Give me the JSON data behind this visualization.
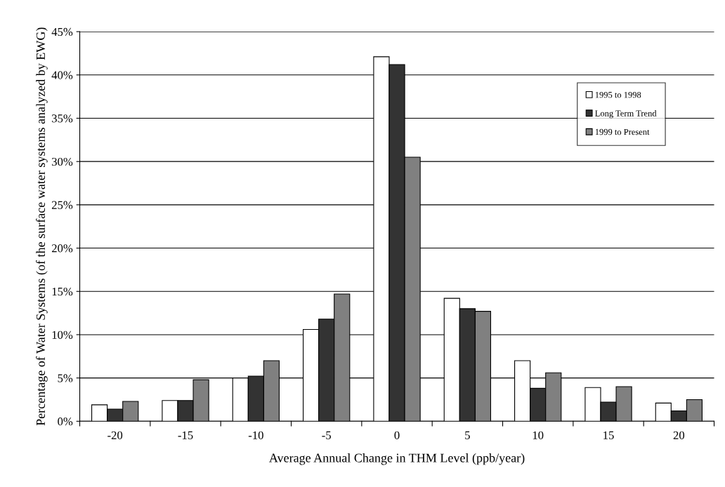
{
  "chart_data": {
    "type": "bar",
    "xlabel": "Average Annual Change in THM Level (ppb/year)",
    "ylabel": "Percentage of Water Systems (of the surface water systems analyzed by EWG)",
    "categories": [
      "-20",
      "-15",
      "-10",
      "-5",
      "0",
      "5",
      "10",
      "15",
      "20"
    ],
    "series": [
      {
        "name": "1995 to 1998",
        "color": "#ffffff",
        "values": [
          1.9,
          2.4,
          5.0,
          10.6,
          42.1,
          14.2,
          7.0,
          3.9,
          2.1
        ]
      },
      {
        "name": "Long Term Trend",
        "color": "#333333",
        "values": [
          1.4,
          2.4,
          5.2,
          11.8,
          41.2,
          13.0,
          3.8,
          2.2,
          1.2
        ]
      },
      {
        "name": "1999 to Present",
        "color": "#808080",
        "values": [
          2.3,
          4.8,
          7.0,
          14.7,
          30.5,
          12.7,
          5.6,
          4.0,
          2.5
        ]
      }
    ],
    "ylim": [
      0,
      45
    ],
    "yticks": [
      {
        "value": 0,
        "label": "0%"
      },
      {
        "value": 5,
        "label": "5%"
      },
      {
        "value": 10,
        "label": "10%"
      },
      {
        "value": 15,
        "label": "15%"
      },
      {
        "value": 20,
        "label": "20%"
      },
      {
        "value": 25,
        "label": "25%"
      },
      {
        "value": 30,
        "label": "30%"
      },
      {
        "value": 35,
        "label": "35%"
      },
      {
        "value": 40,
        "label": "40%"
      },
      {
        "value": 45,
        "label": "45%"
      }
    ],
    "grid": "y",
    "legend": "top right"
  }
}
